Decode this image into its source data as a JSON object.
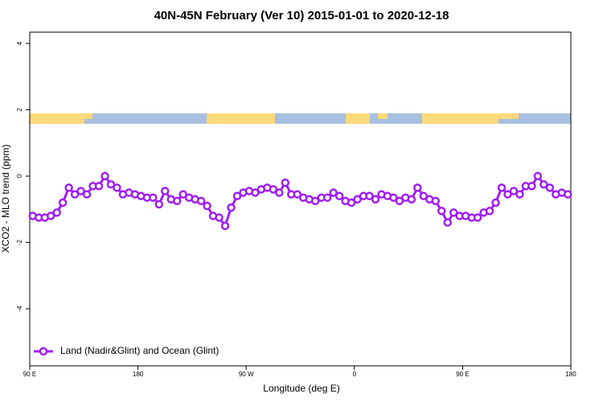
{
  "chart_data": {
    "type": "line",
    "title": "40N-45N February (Ver 10)   2015-01-01 to 2020-12-18",
    "x_label": "Longitude (deg E)",
    "y_label": "XCO2 - MLO trend (ppm)",
    "xlim": [
      90,
      540
    ],
    "ylim": [
      -5.72,
      4.34
    ],
    "xticks": [
      {
        "value": 90,
        "label": "90 E"
      },
      180,
      {
        "value": 270,
        "label": "90 W"
      },
      {
        "value": 360,
        "label": "0"
      },
      {
        "value": 450,
        "label": "90 E"
      },
      {
        "value": 540,
        "label": "180"
      }
    ],
    "yticks": [
      -4,
      -2,
      0,
      2,
      4
    ],
    "legend": "bottom-left",
    "x": [
      92.5,
      97.5,
      102.5,
      107.5,
      112.5,
      117.5,
      122.5,
      127.5,
      132.5,
      137.5,
      142.5,
      147.5,
      152.5,
      157.5,
      162.5,
      167.5,
      172.5,
      177.5,
      182.5,
      187.5,
      192.5,
      197.5,
      202.5,
      207.5,
      212.5,
      217.5,
      222.5,
      227.5,
      232.5,
      237.5,
      242.5,
      247.5,
      252.5,
      257.5,
      262.5,
      267.5,
      272.5,
      277.5,
      282.5,
      287.5,
      292.5,
      297.5,
      302.5,
      307.5,
      312.5,
      317.5,
      322.5,
      327.5,
      332.5,
      337.5,
      342.5,
      347.5,
      352.5,
      357.5,
      362.5,
      367.5,
      372.5,
      377.5,
      382.5,
      387.5,
      392.5,
      397.5,
      402.5,
      407.5,
      412.5,
      417.5,
      422.5,
      427.5,
      432.5,
      437.5,
      442.5,
      447.5,
      452.5,
      457.5,
      462.5,
      467.5,
      472.5,
      477.5,
      482.5,
      487.5,
      492.5,
      497.5,
      502.5,
      507.5,
      512.5,
      517.5,
      522.5,
      527.5,
      532.5,
      537.5
    ],
    "series": [
      {
        "name": "Land (Nadir&Glint) and Ocean (Glint)",
        "color": "#a020f0",
        "values": [
          -1.2,
          -1.25,
          -1.25,
          -1.2,
          -1.1,
          -0.8,
          -0.35,
          -0.55,
          -0.45,
          -0.55,
          -0.3,
          -0.3,
          0,
          -0.25,
          -0.35,
          -0.55,
          -0.5,
          -0.55,
          -0.6,
          -0.65,
          -0.65,
          -0.85,
          -0.45,
          -0.7,
          -0.75,
          -0.55,
          -0.65,
          -0.7,
          -0.75,
          -0.9,
          -1.2,
          -1.25,
          -1.5,
          -0.95,
          -0.6,
          -0.5,
          -0.45,
          -0.5,
          -0.4,
          -0.35,
          -0.4,
          -0.5,
          -0.2,
          -0.55,
          -0.55,
          -0.65,
          -0.7,
          -0.75,
          -0.65,
          -0.65,
          -0.5,
          -0.6,
          -0.75,
          -0.8,
          -0.7,
          -0.6,
          -0.6,
          -0.7,
          -0.55,
          -0.6,
          -0.65,
          -0.75,
          -0.65,
          -0.7,
          -0.35,
          -0.6,
          -0.7,
          -0.75,
          -1.05,
          -1.4,
          -1.1,
          -1.2,
          -1.2,
          -1.25,
          -1.25,
          -1.1,
          -1.05,
          -0.8,
          -0.35,
          -0.55,
          -0.45,
          -0.55,
          -0.3,
          -0.3,
          0,
          -0.25,
          -0.35,
          -0.55,
          -0.5,
          -0.55
        ]
      }
    ]
  }
}
